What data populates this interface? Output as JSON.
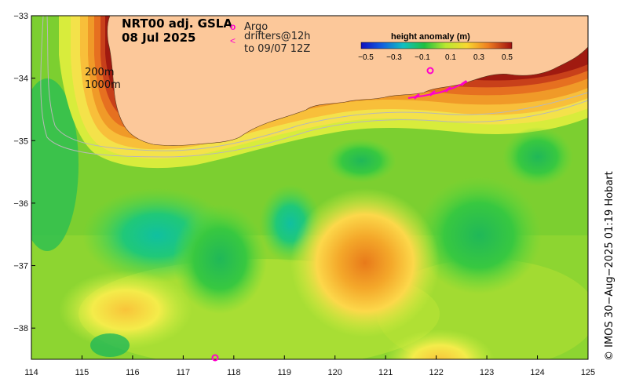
{
  "title": {
    "line1": "NRT00 adj. GSLA",
    "line2": "08 Jul 2025"
  },
  "legend": {
    "argo_symbol": "o",
    "argo_label": "Argo",
    "drifter_symbol": "<",
    "drifter_label1": "drifters@12h",
    "drifter_label2": "to 09/07 12Z"
  },
  "isobaths": {
    "shallow": "200m",
    "deep": "1000m"
  },
  "colorbar": {
    "title": "height anomaly (m)",
    "ticks": [
      "−0.5",
      "−0.3",
      "−0.1",
      "0.1",
      "0.3",
      "0.5"
    ]
  },
  "credit": "© IMOS 30−Aug−2025 01:19 Hobart",
  "axes": {
    "lon_ticks": [
      "114",
      "115",
      "116",
      "117",
      "118",
      "119",
      "120",
      "121",
      "122",
      "123",
      "124",
      "125"
    ],
    "lat_ticks": [
      "−33",
      "−34",
      "−35",
      "−36",
      "−37",
      "−38"
    ],
    "lon_range": [
      114,
      125
    ],
    "lat_range": [
      -38.5,
      -33
    ]
  },
  "colors": {
    "land": "#fcc89a",
    "argo": "#ff00cc",
    "drifter": "#ff00cc"
  }
}
